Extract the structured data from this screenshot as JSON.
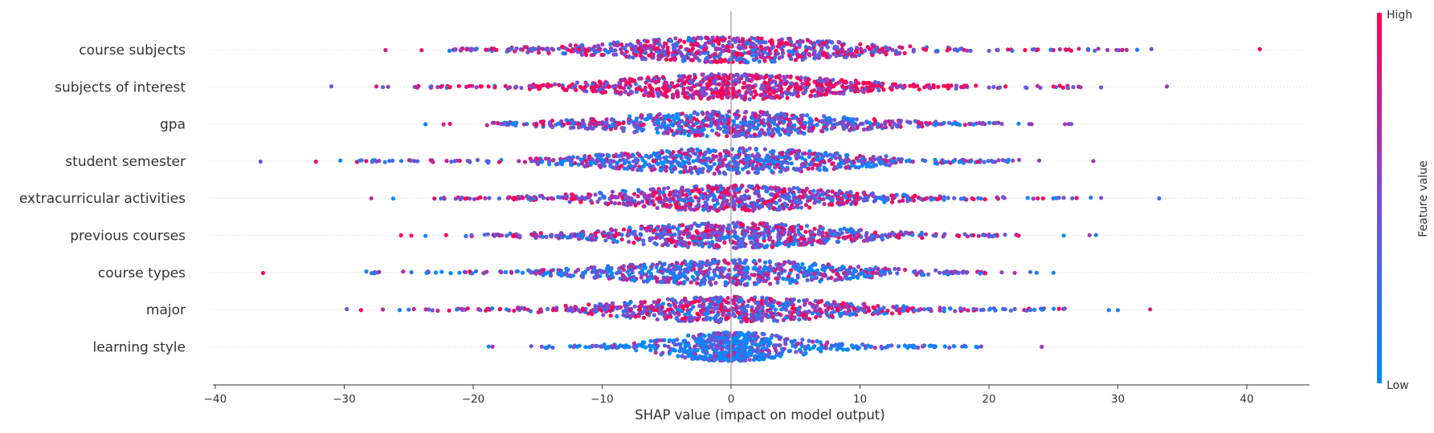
{
  "chart_data": {
    "type": "scatter",
    "subtype": "shap-beeswarm-summary",
    "features": [
      {
        "name": "course subjects",
        "color_bias": 0.62,
        "min": -27,
        "max": 41,
        "outliers": [
          -26.8,
          -24,
          -20.5,
          20.7,
          22.8,
          23.8,
          24.8,
          25.5,
          26,
          30.1,
          41
        ],
        "spread": 7.5,
        "density": 1.0
      },
      {
        "name": "subjects of interest",
        "color_bias": 0.8,
        "min": -31,
        "max": 33.8,
        "outliers": [
          -31,
          -27.5,
          -27,
          -26.6,
          -22.5,
          25,
          27.1,
          28.7,
          33.8
        ],
        "spread": 7.0,
        "density": 1.0
      },
      {
        "name": "gpa",
        "color_bias": 0.45,
        "min": -23.7,
        "max": 26.4,
        "outliers": [
          -23.7,
          -22.3,
          -21.8,
          22.3,
          23.3,
          25.9,
          26.2,
          26.4
        ],
        "spread": 7.0,
        "density": 0.95
      },
      {
        "name": "student semester",
        "color_bias": 0.42,
        "min": -36.5,
        "max": 28.1,
        "outliers": [
          -36.5,
          -32.2,
          -30.3,
          -28.8,
          -28.3,
          -27.5,
          -27.3,
          -24.8,
          20.2,
          23.9,
          28.1
        ],
        "spread": 7.5,
        "density": 0.95
      },
      {
        "name": "extracurricular activities",
        "color_bias": 0.6,
        "min": -28,
        "max": 33.2,
        "outliers": [
          -27.9,
          -26.2,
          -23,
          -22.5,
          21.2,
          23,
          24.2,
          25.8,
          26.8,
          27.9,
          28.7,
          33.2
        ],
        "spread": 7.0,
        "density": 0.95
      },
      {
        "name": "previous courses",
        "color_bias": 0.55,
        "min": -25.6,
        "max": 28.4,
        "outliers": [
          -25.6,
          -24.8,
          -23.7,
          -22.1,
          22.3,
          25.8,
          27.8,
          28.3
        ],
        "spread": 7.0,
        "density": 0.95
      },
      {
        "name": "course types",
        "color_bias": 0.38,
        "min": -36.3,
        "max": 25,
        "outliers": [
          -36.3,
          -27.6,
          -24.8,
          -22.9,
          21,
          22,
          23.2,
          23.7,
          25
        ],
        "spread": 7.0,
        "density": 0.95
      },
      {
        "name": "major",
        "color_bias": 0.58,
        "min": -29.8,
        "max": 32.5,
        "outliers": [
          -29.8,
          -28.7,
          -27,
          -25.7,
          -25,
          -24.6,
          21.1,
          22,
          24.2,
          29.3,
          30,
          32.5
        ],
        "spread": 7.0,
        "density": 0.95
      },
      {
        "name": "learning style",
        "color_bias": 0.2,
        "min": -18.8,
        "max": 24.1,
        "outliers": [
          -18.8,
          -18.5,
          -15.5,
          17.3,
          18.2,
          19,
          19.4,
          24.1
        ],
        "spread": 4.5,
        "density": 0.9,
        "concentrated": true
      }
    ],
    "xlabel": "SHAP value (impact on model output)",
    "xlim": [
      -40.3,
      45
    ],
    "xticks": [
      -40,
      -30,
      -20,
      -10,
      0,
      10,
      20,
      30,
      40
    ],
    "xtick_labels": [
      "−40",
      "−30",
      "−20",
      "−10",
      "0",
      "10",
      "20",
      "30",
      "40"
    ],
    "colorbar": {
      "title": "Feature value",
      "high_label": "High",
      "low_label": "Low",
      "low_color": "#008bfb",
      "high_color": "#ff0052"
    },
    "colors": {
      "axis": "#333333",
      "zero_line": "#999999",
      "row_guide": "#cccccc"
    }
  }
}
